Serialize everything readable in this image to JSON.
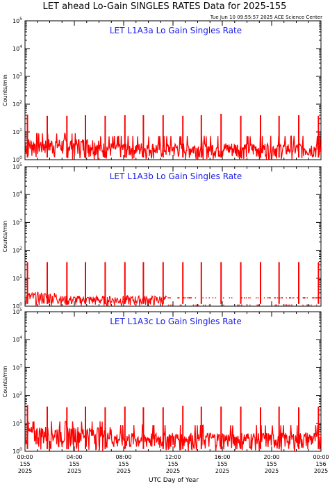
{
  "figure": {
    "title": "LET ahead Lo-Gain SINGLES RATES Data for 2025-155",
    "timestamp": "Tue Jun 10 09:55:57 2025 ACE Science Center",
    "xlabel": "UTC Day of Year"
  },
  "chart_data": [
    {
      "type": "line",
      "title": "LET L1A3a Lo Gain Singles Rate",
      "ylabel": "Counts/min",
      "yscale": "log",
      "ylim": [
        1,
        100000
      ],
      "xlim_hours": [
        0,
        24
      ],
      "baseline": "noisy 1-8 counts/min",
      "series": [
        {
          "name": "",
          "color": "#ff0000",
          "spike_hours": [
            0.2,
            1.8,
            3.4,
            4.9,
            6.5,
            8.1,
            9.6,
            11.2,
            12.8,
            14.3,
            15.9,
            17.5,
            19.1,
            20.6,
            22.2,
            23.8
          ],
          "spike_values": [
            42,
            38,
            38,
            40,
            38,
            40,
            40,
            40,
            38,
            40,
            45,
            38,
            40,
            38,
            40,
            38
          ]
        }
      ]
    },
    {
      "type": "line",
      "title": "LET L1A3b Lo Gain Singles Rate",
      "ylabel": "Counts/min",
      "yscale": "log",
      "ylim": [
        1,
        100000
      ],
      "xlim_hours": [
        0,
        24
      ],
      "baseline": "sparse 1-3 counts/min, dotted after 12:00",
      "series": [
        {
          "name": "",
          "color": "#ff0000",
          "spike_hours": [
            0.2,
            1.8,
            3.4,
            4.9,
            6.5,
            8.1,
            9.6,
            11.2,
            12.8,
            14.3,
            15.9,
            17.5,
            19.1,
            20.6,
            22.2,
            23.8
          ],
          "spike_values": [
            38,
            38,
            38,
            38,
            38,
            38,
            38,
            38,
            38,
            38,
            38,
            38,
            38,
            38,
            38,
            38
          ]
        }
      ]
    },
    {
      "type": "line",
      "title": "LET L1A3c Lo Gain Singles Rate",
      "ylabel": "Counts/min",
      "yscale": "log",
      "ylim": [
        1,
        100000
      ],
      "xlim_hours": [
        0,
        24
      ],
      "baseline": "noisy 1-10 counts/min",
      "series": [
        {
          "name": "",
          "color": "#ff0000",
          "spike_hours": [
            0.2,
            1.8,
            3.4,
            4.9,
            6.5,
            8.1,
            9.6,
            11.2,
            12.8,
            14.3,
            15.9,
            17.5,
            19.1,
            20.6,
            22.2,
            23.8
          ],
          "spike_values": [
            45,
            40,
            38,
            40,
            38,
            40,
            38,
            38,
            42,
            40,
            40,
            40,
            38,
            40,
            38,
            40
          ]
        }
      ]
    }
  ],
  "y_ticks": [
    {
      "value": 1,
      "base": "10",
      "exp": "0"
    },
    {
      "value": 10,
      "base": "10",
      "exp": "1"
    },
    {
      "value": 100,
      "base": "10",
      "exp": "2"
    },
    {
      "value": 1000,
      "base": "10",
      "exp": "3"
    },
    {
      "value": 10000,
      "base": "10",
      "exp": "4"
    },
    {
      "value": 100000,
      "base": "10",
      "exp": "5"
    }
  ],
  "x_ticks": [
    {
      "hour": 0,
      "time": "00:00",
      "day": "155",
      "year": "2025"
    },
    {
      "hour": 4,
      "time": "04:00",
      "day": "155",
      "year": "2025"
    },
    {
      "hour": 8,
      "time": "08:00",
      "day": "155",
      "year": "2025"
    },
    {
      "hour": 12,
      "time": "12:00",
      "day": "155",
      "year": "2025"
    },
    {
      "hour": 16,
      "time": "16:00",
      "day": "155",
      "year": "2025"
    },
    {
      "hour": 20,
      "time": "20:00",
      "day": "155",
      "year": "2025"
    },
    {
      "hour": 24,
      "time": "00:00",
      "day": "156",
      "year": "2025"
    }
  ]
}
